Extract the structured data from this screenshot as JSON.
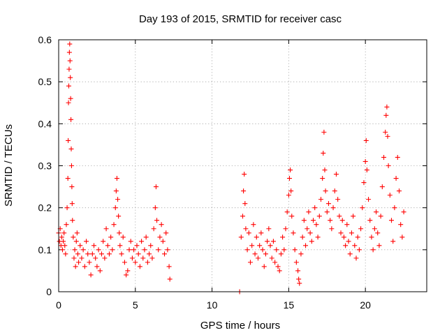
{
  "chart_data": {
    "type": "scatter",
    "title": "Day 193 of 2015, SRMTID for receiver casc",
    "xlabel": "GPS time / hours",
    "ylabel": "SRMTID / TECUs",
    "xlim": [
      0,
      24
    ],
    "ylim": [
      0,
      0.6
    ],
    "xticks": [
      0,
      5,
      10,
      15,
      20
    ],
    "xtick_labels": [
      "0",
      "5",
      "10",
      "15",
      "20"
    ],
    "yticks": [
      0,
      0.1,
      0.2,
      0.3,
      0.4,
      0.5,
      0.6
    ],
    "ytick_labels": [
      "0",
      "0.1",
      "0.2",
      "0.3",
      "0.4",
      "0.5",
      "0.6"
    ],
    "grid": true,
    "marker": "+",
    "color": "#ff0000",
    "series": [
      {
        "name": "SRMTID",
        "points": [
          [
            0.0,
            0.14
          ],
          [
            0.05,
            0.12
          ],
          [
            0.1,
            0.15
          ],
          [
            0.15,
            0.11
          ],
          [
            0.2,
            0.13
          ],
          [
            0.25,
            0.1
          ],
          [
            0.3,
            0.12
          ],
          [
            0.35,
            0.14
          ],
          [
            0.4,
            0.11
          ],
          [
            0.45,
            0.09
          ],
          [
            0.5,
            0.16
          ],
          [
            0.55,
            0.2
          ],
          [
            0.6,
            0.27
          ],
          [
            0.62,
            0.36
          ],
          [
            0.64,
            0.45
          ],
          [
            0.66,
            0.49
          ],
          [
            0.68,
            0.53
          ],
          [
            0.7,
            0.57
          ],
          [
            0.72,
            0.59
          ],
          [
            0.74,
            0.55
          ],
          [
            0.76,
            0.51
          ],
          [
            0.78,
            0.46
          ],
          [
            0.8,
            0.41
          ],
          [
            0.82,
            0.34
          ],
          [
            0.84,
            0.3
          ],
          [
            0.86,
            0.25
          ],
          [
            0.88,
            0.21
          ],
          [
            0.9,
            0.17
          ],
          [
            0.95,
            0.13
          ],
          [
            1.0,
            0.08
          ],
          [
            1.05,
            0.1
          ],
          [
            1.1,
            0.06
          ],
          [
            1.15,
            0.12
          ],
          [
            1.2,
            0.14
          ],
          [
            1.25,
            0.09
          ],
          [
            1.3,
            0.07
          ],
          [
            1.4,
            0.11
          ],
          [
            1.5,
            0.08
          ],
          [
            1.6,
            0.1
          ],
          [
            1.7,
            0.06
          ],
          [
            1.8,
            0.12
          ],
          [
            1.9,
            0.09
          ],
          [
            2.0,
            0.07
          ],
          [
            2.1,
            0.04
          ],
          [
            2.2,
            0.09
          ],
          [
            2.3,
            0.11
          ],
          [
            2.4,
            0.08
          ],
          [
            2.5,
            0.06
          ],
          [
            2.6,
            0.1
          ],
          [
            2.7,
            0.05
          ],
          [
            2.8,
            0.09
          ],
          [
            2.9,
            0.12
          ],
          [
            3.0,
            0.08
          ],
          [
            3.1,
            0.15
          ],
          [
            3.2,
            0.11
          ],
          [
            3.3,
            0.09
          ],
          [
            3.4,
            0.13
          ],
          [
            3.5,
            0.1
          ],
          [
            3.6,
            0.16
          ],
          [
            3.7,
            0.2
          ],
          [
            3.75,
            0.24
          ],
          [
            3.8,
            0.27
          ],
          [
            3.85,
            0.22
          ],
          [
            3.9,
            0.18
          ],
          [
            3.95,
            0.14
          ],
          [
            4.0,
            0.11
          ],
          [
            4.1,
            0.09
          ],
          [
            4.2,
            0.13
          ],
          [
            4.3,
            0.07
          ],
          [
            4.4,
            0.04
          ],
          [
            4.5,
            0.05
          ],
          [
            4.6,
            0.1
          ],
          [
            4.7,
            0.12
          ],
          [
            4.8,
            0.08
          ],
          [
            4.9,
            0.1
          ],
          [
            5.0,
            0.07
          ],
          [
            5.1,
            0.11
          ],
          [
            5.2,
            0.09
          ],
          [
            5.3,
            0.06
          ],
          [
            5.4,
            0.12
          ],
          [
            5.5,
            0.08
          ],
          [
            5.6,
            0.1
          ],
          [
            5.7,
            0.13
          ],
          [
            5.8,
            0.07
          ],
          [
            5.9,
            0.09
          ],
          [
            6.0,
            0.11
          ],
          [
            6.1,
            0.08
          ],
          [
            6.2,
            0.15
          ],
          [
            6.3,
            0.2
          ],
          [
            6.35,
            0.25
          ],
          [
            6.4,
            0.17
          ],
          [
            6.5,
            0.1
          ],
          [
            6.6,
            0.13
          ],
          [
            6.7,
            0.16
          ],
          [
            6.8,
            0.12
          ],
          [
            6.9,
            0.09
          ],
          [
            7.0,
            0.14
          ],
          [
            7.1,
            0.1
          ],
          [
            7.2,
            0.06
          ],
          [
            7.25,
            0.03
          ],
          [
            11.8,
            0.0
          ],
          [
            11.9,
            0.13
          ],
          [
            12.0,
            0.18
          ],
          [
            12.05,
            0.24
          ],
          [
            12.1,
            0.28
          ],
          [
            12.15,
            0.21
          ],
          [
            12.2,
            0.15
          ],
          [
            12.3,
            0.1
          ],
          [
            12.4,
            0.14
          ],
          [
            12.5,
            0.07
          ],
          [
            12.6,
            0.11
          ],
          [
            12.7,
            0.16
          ],
          [
            12.8,
            0.09
          ],
          [
            12.9,
            0.13
          ],
          [
            13.0,
            0.08
          ],
          [
            13.1,
            0.11
          ],
          [
            13.2,
            0.14
          ],
          [
            13.3,
            0.1
          ],
          [
            13.4,
            0.06
          ],
          [
            13.5,
            0.09
          ],
          [
            13.6,
            0.12
          ],
          [
            13.7,
            0.15
          ],
          [
            13.8,
            0.11
          ],
          [
            13.9,
            0.08
          ],
          [
            14.0,
            0.12
          ],
          [
            14.1,
            0.07
          ],
          [
            14.2,
            0.1
          ],
          [
            14.3,
            0.06
          ],
          [
            14.4,
            0.05
          ],
          [
            14.5,
            0.09
          ],
          [
            14.6,
            0.13
          ],
          [
            14.7,
            0.1
          ],
          [
            14.8,
            0.15
          ],
          [
            14.9,
            0.19
          ],
          [
            15.0,
            0.23
          ],
          [
            15.05,
            0.27
          ],
          [
            15.1,
            0.29
          ],
          [
            15.15,
            0.24
          ],
          [
            15.2,
            0.18
          ],
          [
            15.3,
            0.14
          ],
          [
            15.4,
            0.1
          ],
          [
            15.5,
            0.07
          ],
          [
            15.6,
            0.05
          ],
          [
            15.65,
            0.03
          ],
          [
            15.7,
            0.02
          ],
          [
            15.8,
            0.09
          ],
          [
            15.9,
            0.13
          ],
          [
            16.0,
            0.17
          ],
          [
            16.1,
            0.11
          ],
          [
            16.2,
            0.15
          ],
          [
            16.3,
            0.19
          ],
          [
            16.4,
            0.14
          ],
          [
            16.5,
            0.12
          ],
          [
            16.6,
            0.17
          ],
          [
            16.7,
            0.2
          ],
          [
            16.8,
            0.16
          ],
          [
            16.9,
            0.13
          ],
          [
            17.0,
            0.18
          ],
          [
            17.1,
            0.22
          ],
          [
            17.2,
            0.27
          ],
          [
            17.25,
            0.33
          ],
          [
            17.3,
            0.38
          ],
          [
            17.35,
            0.29
          ],
          [
            17.4,
            0.24
          ],
          [
            17.5,
            0.19
          ],
          [
            17.6,
            0.21
          ],
          [
            17.7,
            0.17
          ],
          [
            17.8,
            0.15
          ],
          [
            17.9,
            0.2
          ],
          [
            18.0,
            0.24
          ],
          [
            18.1,
            0.28
          ],
          [
            18.2,
            0.22
          ],
          [
            18.3,
            0.18
          ],
          [
            18.4,
            0.14
          ],
          [
            18.5,
            0.17
          ],
          [
            18.6,
            0.13
          ],
          [
            18.7,
            0.11
          ],
          [
            18.8,
            0.16
          ],
          [
            18.9,
            0.12
          ],
          [
            19.0,
            0.09
          ],
          [
            19.1,
            0.14
          ],
          [
            19.2,
            0.18
          ],
          [
            19.3,
            0.11
          ],
          [
            19.4,
            0.08
          ],
          [
            19.5,
            0.13
          ],
          [
            19.6,
            0.1
          ],
          [
            19.7,
            0.15
          ],
          [
            19.8,
            0.2
          ],
          [
            19.9,
            0.26
          ],
          [
            20.0,
            0.31
          ],
          [
            20.05,
            0.36
          ],
          [
            20.1,
            0.29
          ],
          [
            20.2,
            0.22
          ],
          [
            20.3,
            0.17
          ],
          [
            20.4,
            0.13
          ],
          [
            20.5,
            0.1
          ],
          [
            20.6,
            0.15
          ],
          [
            20.7,
            0.19
          ],
          [
            20.8,
            0.14
          ],
          [
            20.9,
            0.11
          ],
          [
            21.0,
            0.18
          ],
          [
            21.1,
            0.25
          ],
          [
            21.2,
            0.32
          ],
          [
            21.3,
            0.38
          ],
          [
            21.35,
            0.42
          ],
          [
            21.4,
            0.44
          ],
          [
            21.45,
            0.37
          ],
          [
            21.5,
            0.3
          ],
          [
            21.6,
            0.23
          ],
          [
            21.7,
            0.17
          ],
          [
            21.8,
            0.12
          ],
          [
            21.9,
            0.2
          ],
          [
            22.0,
            0.27
          ],
          [
            22.1,
            0.32
          ],
          [
            22.2,
            0.24
          ],
          [
            22.3,
            0.16
          ],
          [
            22.4,
            0.13
          ],
          [
            22.5,
            0.19
          ]
        ]
      }
    ]
  }
}
